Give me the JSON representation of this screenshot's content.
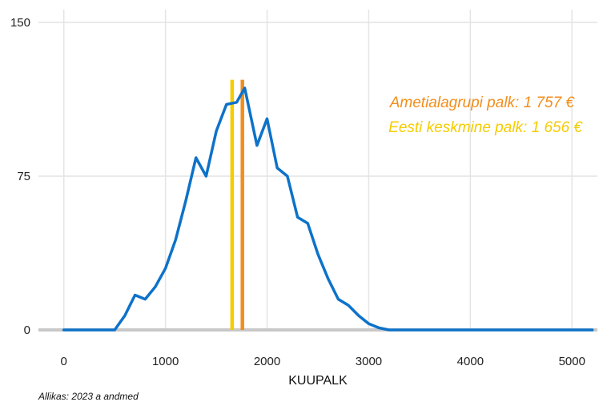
{
  "chart_data": {
    "type": "line",
    "xlabel": "KUUPALK",
    "ylabel": "",
    "xlim": [
      -250,
      5250
    ],
    "ylim": [
      0,
      150
    ],
    "xticks": [
      0,
      1000,
      2000,
      3000,
      4000,
      5000
    ],
    "yticks": [
      0,
      75,
      150
    ],
    "xtick_labels": [
      "0",
      "1000",
      "2000",
      "3000",
      "4000",
      "5000"
    ],
    "ytick_labels": [
      "0",
      "75",
      "150"
    ],
    "grid": true,
    "legend": "none",
    "series": [
      {
        "color": "#0d72c9",
        "x": [
          0,
          100,
          200,
          300,
          400,
          500,
          600,
          700,
          800,
          900,
          1000,
          1100,
          1200,
          1300,
          1400,
          1500,
          1600,
          1700,
          1780,
          1900,
          2000,
          2100,
          2200,
          2300,
          2400,
          2500,
          2600,
          2700,
          2800,
          2900,
          3000,
          3100,
          3200,
          3300,
          3400,
          3500,
          3600,
          3700,
          3800,
          3900,
          4000,
          4100,
          4200,
          4300,
          4400,
          4500,
          4600,
          4700,
          4800,
          4900,
          5000,
          5100,
          5200
        ],
        "y": [
          0,
          0,
          0,
          0,
          0,
          0,
          7,
          17,
          15,
          21,
          30,
          44,
          63,
          84,
          75,
          97,
          110,
          111,
          118,
          90,
          103,
          79,
          75,
          55,
          52,
          37,
          25,
          15,
          12,
          7,
          3,
          1,
          0,
          0,
          0,
          0,
          0,
          0,
          0,
          0,
          0,
          0,
          0,
          0,
          0,
          0,
          0,
          0,
          0,
          0,
          0,
          0,
          0
        ]
      }
    ],
    "vlines": [
      {
        "x": 1656,
        "color": "#f5cc00",
        "label": "Eesti keskmine palk: 1 656 €"
      },
      {
        "x": 1757,
        "color": "#f28e1c",
        "label": "Ametialagrupi palk: 1 757 €"
      }
    ],
    "source": "Allikas: 2023 a andmed"
  }
}
